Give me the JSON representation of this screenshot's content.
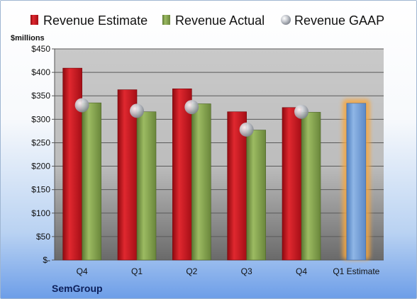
{
  "company": "SemGroup",
  "chart_data": {
    "type": "bar",
    "unit_label": "$millions",
    "categories": [
      "Q4",
      "Q1",
      "Q2",
      "Q3",
      "Q4",
      "Q1 Estimate"
    ],
    "series": [
      {
        "name": "Revenue Estimate",
        "color": "#c8141e",
        "values": [
          409,
          363,
          365,
          316,
          325,
          null
        ]
      },
      {
        "name": "Revenue Actual",
        "color": "#7e9c4a",
        "values": [
          335,
          316,
          333,
          277,
          315,
          334
        ]
      },
      {
        "name": "Revenue GAAP",
        "color": "#b8bcc4",
        "values": [
          330,
          318,
          326,
          278,
          316,
          null
        ]
      }
    ],
    "highlight": {
      "category": "Q1 Estimate",
      "color": "#6a9ad6",
      "glow": "#f5a742"
    },
    "ylim": [
      0,
      450
    ],
    "yticks": [
      0,
      50,
      100,
      150,
      200,
      250,
      300,
      350,
      400,
      450
    ],
    "ytick_labels": [
      "$-",
      "$50",
      "$100",
      "$150",
      "$200",
      "$250",
      "$300",
      "$350",
      "$400",
      "$450"
    ],
    "grid": true,
    "legend_position": "top"
  }
}
